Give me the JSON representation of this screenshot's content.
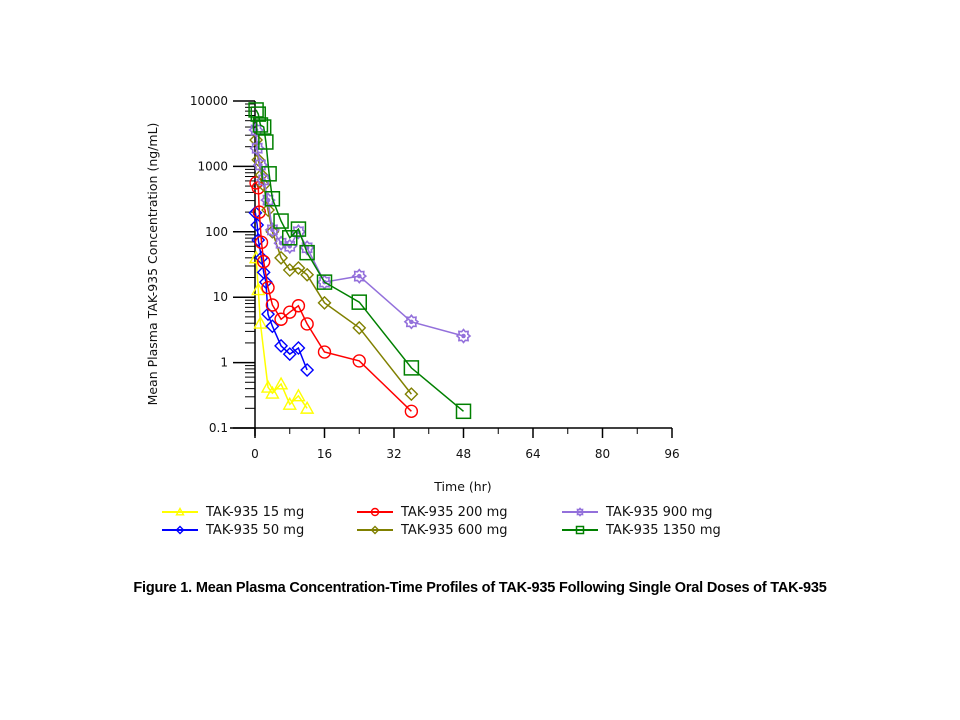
{
  "chart_data": {
    "type": "line",
    "title": "",
    "xlabel": "Time (hr)",
    "ylabel": "Mean Plasma TAK-935 Concentration (ng/mL)",
    "xlim": [
      0,
      96
    ],
    "ylim": [
      0.1,
      10000
    ],
    "yscale": "log",
    "xticks": [
      "0",
      "16",
      "32",
      "48",
      "64",
      "80",
      "96"
    ],
    "xtick_values": [
      0,
      16,
      32,
      48,
      64,
      80,
      96
    ],
    "yticks": [
      "0.1",
      "1",
      "10",
      "100",
      "1000",
      "10000"
    ],
    "ytick_values": [
      0.1,
      1,
      10,
      100,
      1000,
      10000
    ],
    "grid": false,
    "legend_position": "bottom",
    "series": [
      {
        "name": "TAK-935 15 mg",
        "color": "#ffff00",
        "marker": "triangle",
        "x": [
          0.25,
          0.75,
          1.25,
          3,
          4,
          6,
          8,
          10,
          12
        ],
        "values": [
          40,
          13,
          4.0,
          0.42,
          0.34,
          0.47,
          0.23,
          0.31,
          0.2
        ]
      },
      {
        "name": "TAK-935 50 mg",
        "color": "#0000ff",
        "marker": "diamond",
        "x": [
          0.1,
          0.5,
          0.75,
          1.5,
          2,
          2.5,
          3,
          4,
          6,
          8,
          10,
          12
        ],
        "values": [
          195,
          127,
          75,
          40,
          24,
          17,
          5.5,
          3.6,
          1.8,
          1.35,
          1.67,
          0.77
        ]
      },
      {
        "name": "TAK-935 200 mg",
        "color": "#ff0000",
        "marker": "circle",
        "x": [
          0.25,
          0.75,
          1,
          1.5,
          2,
          3,
          4,
          6,
          8,
          10,
          12,
          16,
          24,
          36
        ],
        "values": [
          560,
          470,
          200,
          69,
          35,
          14,
          7.6,
          4.6,
          5.9,
          7.4,
          3.9,
          1.45,
          1.06,
          0.18
        ]
      },
      {
        "name": "TAK-935 600 mg",
        "color": "#808000",
        "marker": "diamond",
        "x": [
          0.25,
          0.75,
          1.5,
          2,
          3,
          4,
          6,
          8,
          10,
          12,
          16,
          24,
          36
        ],
        "values": [
          2530,
          1260,
          740,
          520,
          215,
          100,
          40,
          26,
          28,
          22,
          8.2,
          3.4,
          0.33
        ]
      },
      {
        "name": "TAK-935 900 mg",
        "color": "#9370db",
        "marker": "star-circle",
        "x": [
          0.25,
          0.5,
          1.25,
          2,
          3,
          4,
          6,
          8,
          10,
          12,
          16,
          24,
          36,
          48
        ],
        "values": [
          3600,
          1900,
          1050,
          620,
          305,
          107,
          67,
          60,
          100,
          57,
          17,
          21,
          4.2,
          2.55
        ]
      },
      {
        "name": "TAK-935 1350 mg",
        "color": "#008000",
        "marker": "square",
        "x": [
          0.25,
          0.75,
          1.25,
          2,
          2.5,
          3.25,
          4,
          6,
          8,
          10,
          12,
          16,
          24,
          36,
          48
        ],
        "values": [
          7300,
          6300,
          4300,
          4000,
          2360,
          770,
          320,
          146,
          81,
          110,
          48,
          17,
          8.4,
          0.83,
          0.18
        ]
      }
    ]
  },
  "caption": "Figure 1. Mean Plasma Concentration-Time Profiles of TAK-935 Following Single Oral Doses of TAK-935"
}
